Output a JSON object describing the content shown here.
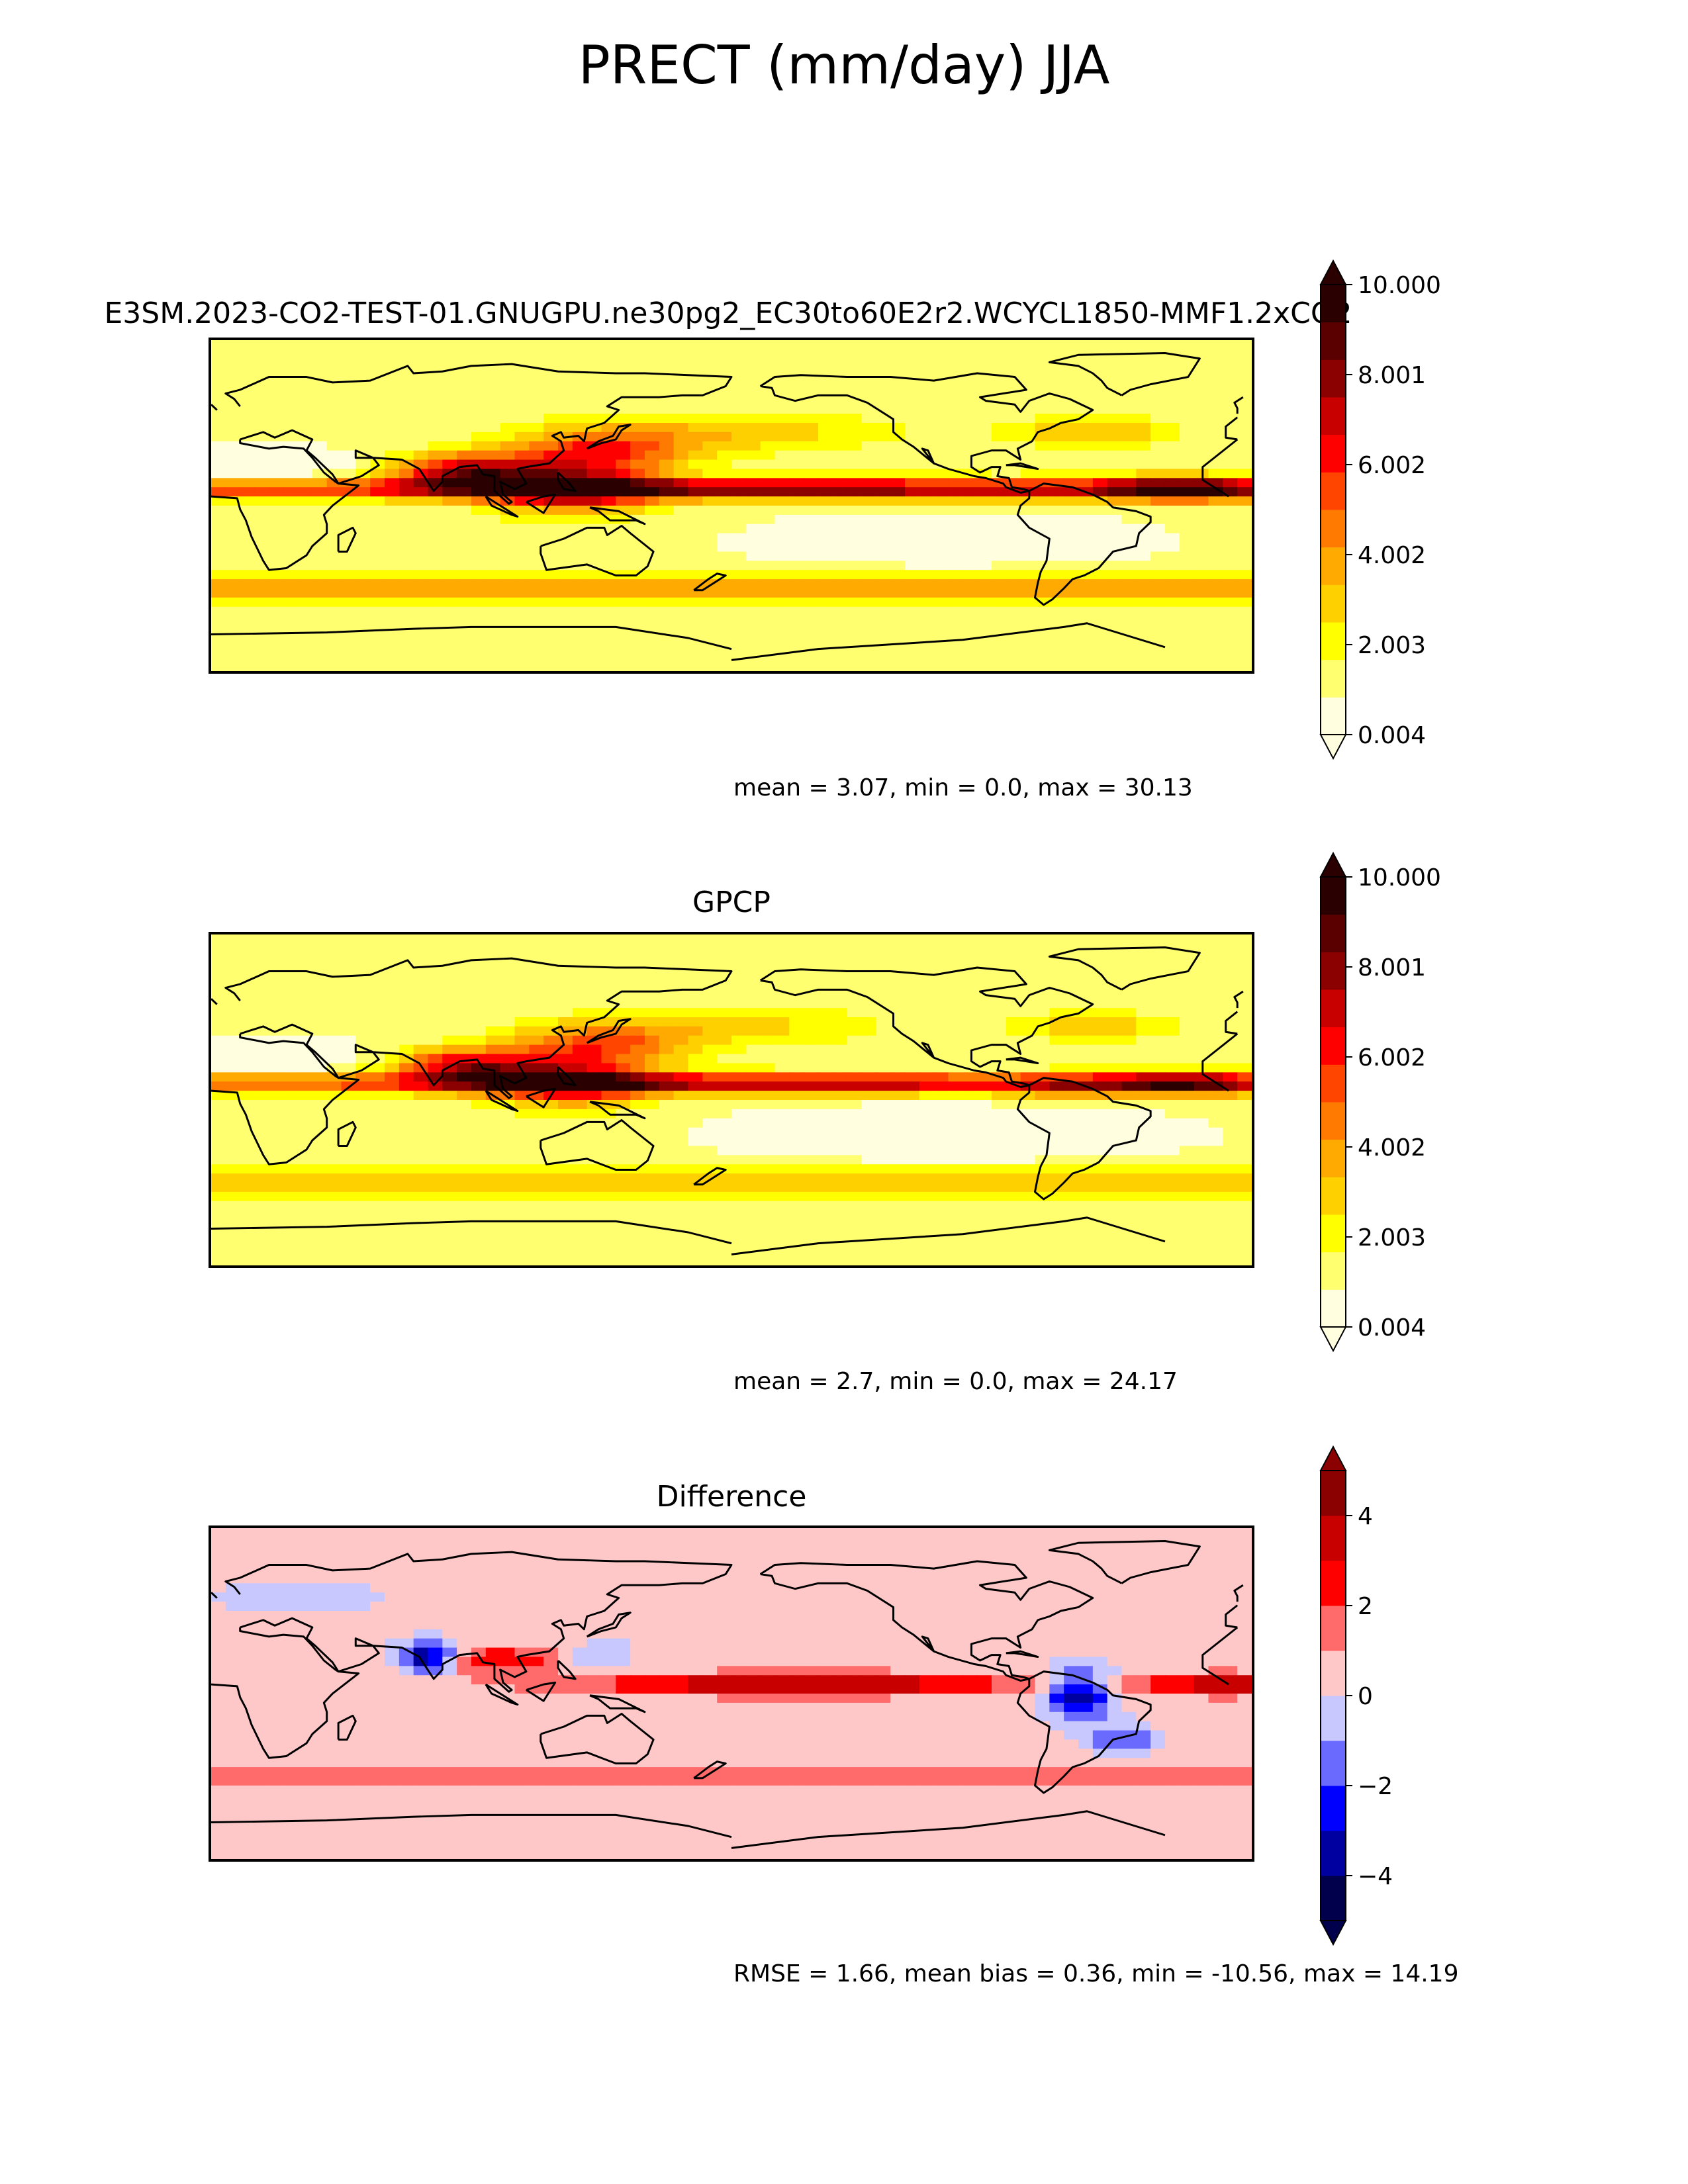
{
  "figure": {
    "title": "PRECT (mm/day) JJA"
  },
  "colors": {
    "precip": [
      "#ffffe0",
      "#ffff70",
      "#ffff00",
      "#ffd000",
      "#ffaa00",
      "#ff7a00",
      "#ff4500",
      "#ff0000",
      "#c80000",
      "#8b0000",
      "#5a0000",
      "#2a0000"
    ],
    "diff": [
      "#00004d",
      "#0000a0",
      "#0000ff",
      "#6a6aff",
      "#c8c8ff",
      "#ffc8c8",
      "#ff6a6a",
      "#ff0000",
      "#c80000",
      "#8b0000"
    ],
    "coast": "#000000"
  },
  "chart_data": [
    {
      "type": "heatmap",
      "title": "E3SM.2023-CO2-TEST-01.GNUGPU.ne30pg2_EC30to60E2r2.WCYCL1850-MMF1.2xCO2",
      "units": "mm/day",
      "colorbar": {
        "ticks": [
          "10.000",
          "8.001",
          "6.002",
          "4.002",
          "2.003",
          "0.004"
        ],
        "range": [
          0.004,
          10.0
        ],
        "extend": "both"
      },
      "stats_text": "mean = 3.07, min = 0.0, max = 30.13",
      "stats": {
        "mean": 3.07,
        "min": 0.0,
        "max": 30.13
      }
    },
    {
      "type": "heatmap",
      "title": "GPCP",
      "units": "mm/day",
      "colorbar": {
        "ticks": [
          "10.000",
          "8.001",
          "6.002",
          "4.002",
          "2.003",
          "0.004"
        ],
        "range": [
          0.004,
          10.0
        ],
        "extend": "both"
      },
      "stats_text": "mean = 2.7, min = 0.0, max = 24.17",
      "stats": {
        "mean": 2.7,
        "min": 0.0,
        "max": 24.17
      }
    },
    {
      "type": "heatmap",
      "title": "Difference",
      "units": "mm/day",
      "colorbar": {
        "ticks": [
          "4",
          "2",
          "0",
          "−2",
          "−4"
        ],
        "range": [
          -5,
          5
        ],
        "extend": "both"
      },
      "stats_text": "RMSE = 1.66, mean bias = 0.36, min = -10.56, max = 14.19",
      "stats": {
        "rmse": 1.66,
        "mean_bias": 0.36,
        "min": -10.56,
        "max": 14.19
      }
    }
  ]
}
